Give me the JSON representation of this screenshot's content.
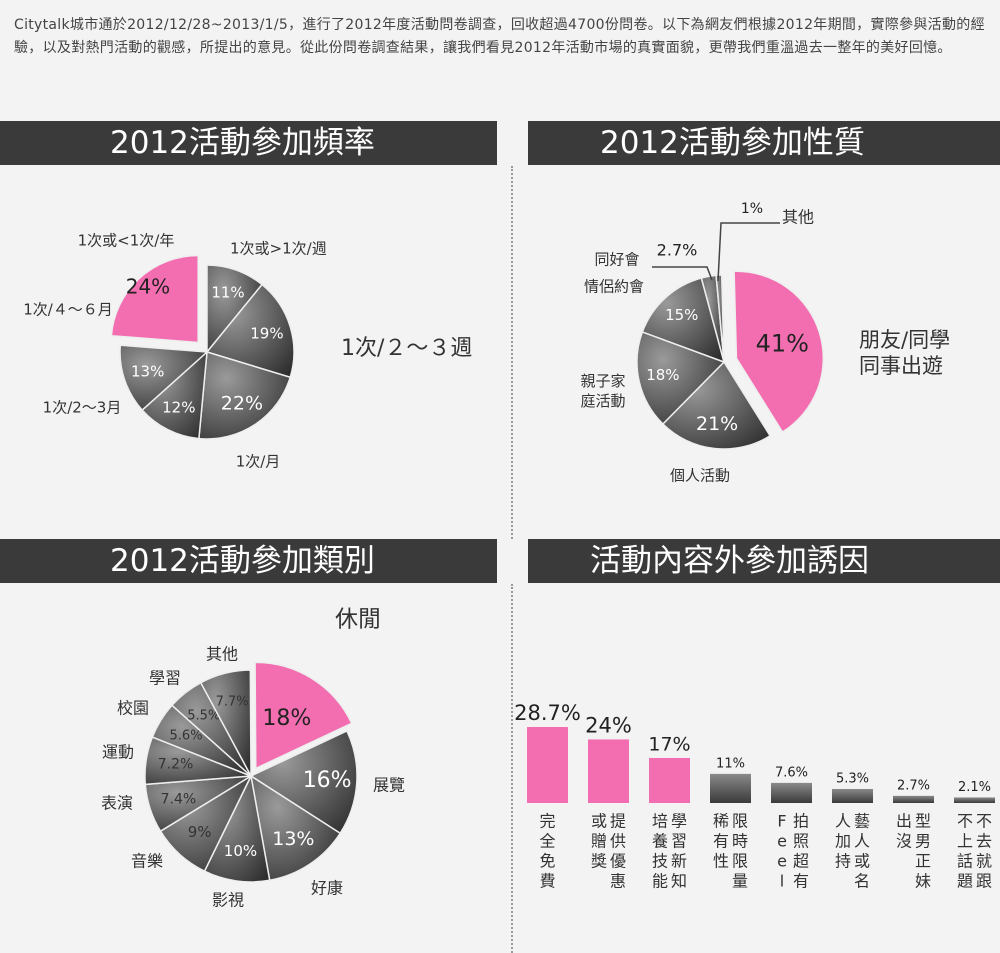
{
  "intro": "Citytalk城市通於2012/12/28~2013/1/5，進行了2012年度活動問卷調查，回收超過4700份問卷。以下為網友們根據2012年期間，實際參與活動的經驗，以及對熱門活動的觀感，所提出的意見。從此份問卷調查結果，讓我們看見2012年活動市場的真實面貌，更帶我們重溫過去一整年的美好回憶。",
  "colors": {
    "pink": "#f26eb0",
    "dark": "#444444",
    "banner": "#3a3a3a",
    "background": "#f3f3f3"
  },
  "chart_data": [
    {
      "type": "pie",
      "title": "2012活動參加頻率",
      "categories": [
        "1次或>1次/週",
        "1次/月",
        "1次/2～3月",
        "1次/４～６月",
        "1次或<1次/年",
        "1次/２～３週"
      ],
      "values": [
        11,
        19,
        22,
        12,
        13,
        24
      ],
      "value_labels": [
        "11%",
        "19%",
        "22%",
        "12%",
        "13%",
        "24%"
      ],
      "highlight": "1次/２～３週"
    },
    {
      "type": "pie",
      "title": "2012活動參加性質",
      "categories": [
        "個人活動",
        "親子家庭活動",
        "情侶約會",
        "同好會",
        "其他",
        "朋友/同學同事出遊"
      ],
      "values": [
        21,
        18,
        15,
        2.7,
        1,
        41
      ],
      "value_labels": [
        "21%",
        "18%",
        "15%",
        "2.7%",
        "1%",
        "41%"
      ],
      "highlight": "朋友/同學同事出遊"
    },
    {
      "type": "pie",
      "title": "2012活動參加類別",
      "categories": [
        "展覽",
        "好康",
        "影視",
        "音樂",
        "表演",
        "運動",
        "校園",
        "學習",
        "其他",
        "休閒"
      ],
      "values": [
        16,
        13,
        10,
        9,
        7.4,
        7.2,
        5.6,
        5.5,
        7.7,
        18
      ],
      "value_labels": [
        "16%",
        "13%",
        "10%",
        "9%",
        "7.4%",
        "7.2%",
        "5.6%",
        "5.5%",
        "7.7%",
        "18%"
      ],
      "highlight": "休閒"
    },
    {
      "type": "bar",
      "title": "活動內容外參加誘因",
      "categories": [
        "完全免費",
        "提供優惠或贈獎",
        "學習新知培養技能",
        "限時限量稀有性",
        "拍照Feel",
        "藝人或名人加持",
        "型男正妹出沒",
        "不去就跟不上話題"
      ],
      "values": [
        28.7,
        24,
        17,
        11,
        7.6,
        5.3,
        2.7,
        2.1
      ],
      "value_labels": [
        "28.7%",
        "24%",
        "17%",
        "11%",
        "7.6%",
        "5.3%",
        "2.7%",
        "2.1%"
      ],
      "column_texts": [
        [
          "完全免費"
        ],
        [
          "提供優惠",
          "或贈獎"
        ],
        [
          "學習新知",
          "培養技能"
        ],
        [
          "限時限量",
          "稀有性"
        ],
        [
          "拍照超有",
          "Feel"
        ],
        [
          "藝人或名",
          "人加持"
        ],
        [
          "型男正妹",
          "出沒"
        ],
        [
          "不去就跟",
          "不上話題"
        ]
      ]
    }
  ]
}
